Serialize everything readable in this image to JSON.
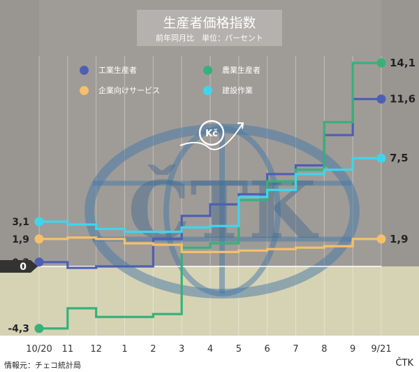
{
  "title": "生産者価格指数",
  "subtitle": "前年同月比　単位：パーセント",
  "watermark": "ČTK",
  "currency_badge": "Kč",
  "footer": {
    "source": "情報元：チェコ統計局",
    "brand": "ČTK"
  },
  "colors": {
    "background_top": "#999692",
    "background_bottom": "#d6d3b4",
    "zero_label_bg": "#333333"
  },
  "chart_data": {
    "type": "line",
    "step": true,
    "categories": [
      "10/20",
      "11",
      "12",
      "1",
      "2",
      "3",
      "4",
      "5",
      "6",
      "7",
      "8",
      "9",
      "9/21"
    ],
    "ylim": [
      -4.3,
      14.1
    ],
    "grid": true,
    "legend_position": "top",
    "series": [
      {
        "name": "工業生産者",
        "color": "#4e5fb3",
        "values": [
          0.3,
          -0.1,
          0.0,
          0.0,
          1.9,
          3.5,
          4.3,
          5.0,
          6.4,
          7.0,
          9.1,
          11.6,
          11.6
        ],
        "end_label": "11,6"
      },
      {
        "name": "農業生産者",
        "color": "#38b07a",
        "values": [
          -4.3,
          -2.9,
          -3.5,
          -3.5,
          -3.3,
          1.3,
          1.6,
          4.6,
          5.9,
          6.7,
          10.0,
          14.1,
          14.1
        ],
        "end_label": "14,1"
      },
      {
        "name": "企業向けサービス",
        "color": "#f5c06a",
        "values": [
          1.9,
          2.0,
          1.9,
          1.6,
          1.5,
          1.0,
          1.0,
          1.1,
          1.2,
          1.3,
          1.4,
          1.9,
          1.9
        ],
        "end_label": "1,9"
      },
      {
        "name": "建設作業",
        "color": "#3fd6ec",
        "values": [
          3.1,
          2.9,
          2.6,
          2.4,
          2.4,
          2.7,
          2.8,
          4.8,
          5.3,
          6.4,
          6.7,
          7.5,
          7.5
        ],
        "end_label": "7,5"
      }
    ],
    "start_labels": [
      {
        "text": "3,1",
        "value": 3.1
      },
      {
        "text": "1,9",
        "value": 1.9
      },
      {
        "text": "0,3",
        "value": 0.3
      },
      {
        "text": "0",
        "value": 0
      },
      {
        "text": "-4,3",
        "value": -4.3
      }
    ]
  }
}
